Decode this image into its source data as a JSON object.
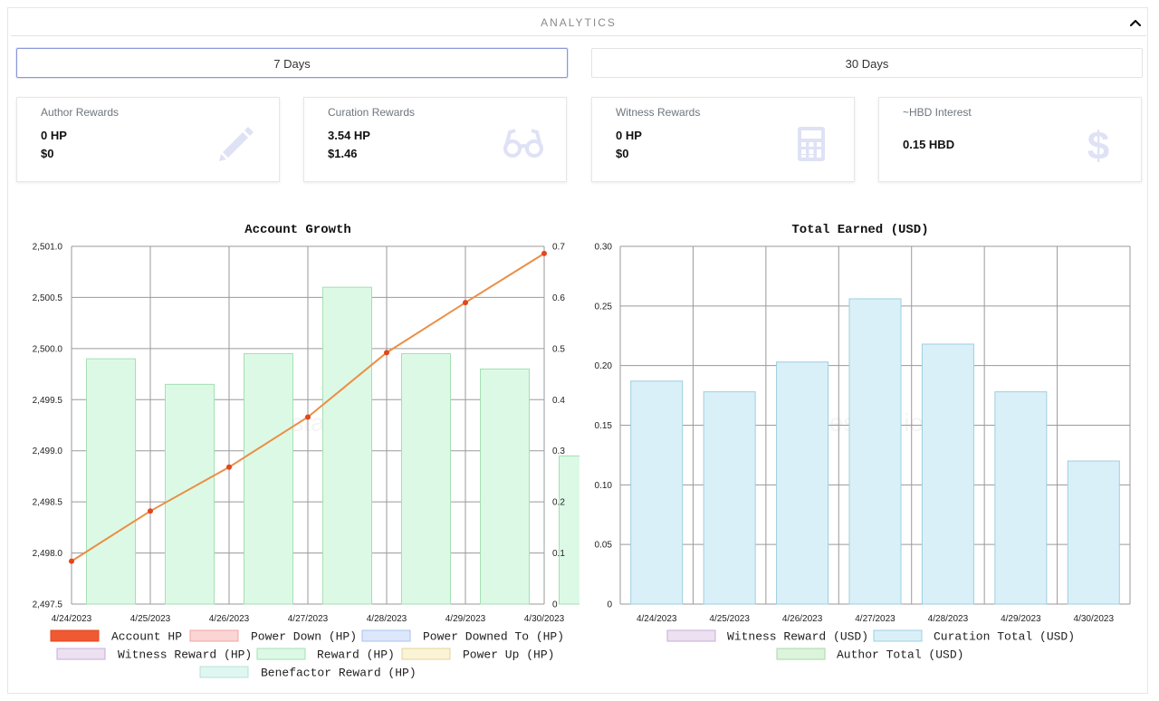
{
  "section": {
    "title": "ANALYTICS"
  },
  "range_buttons": {
    "seven": "7 Days",
    "thirty": "30 Days"
  },
  "cards": [
    {
      "title": "Author Rewards",
      "line1": "0 HP",
      "line2": "$0",
      "icon": "pencil-icon"
    },
    {
      "title": "Curation Rewards",
      "line1": "3.54 HP",
      "line2": "$1.46",
      "icon": "glasses-icon"
    },
    {
      "title": "Witness Rewards",
      "line1": "0 HP",
      "line2": "$0",
      "icon": "calculator-icon"
    },
    {
      "title": "~HBD Interest",
      "line1": "0.15 HBD",
      "icon": "dollar-icon"
    }
  ],
  "colors": {
    "accent": "#8b97d8",
    "icon": "#dfe2f5",
    "green": "#dcf9e6",
    "green_border": "#a5dfb4",
    "blue": "#daf0f8",
    "blue_border": "#9ccfe0",
    "orange": "#eb8e45"
  },
  "chart_data": [
    {
      "type": "bar",
      "title": "Account Growth",
      "categories": [
        "4/24/2023",
        "4/25/2023",
        "4/26/2023",
        "4/27/2023",
        "4/28/2023",
        "4/29/2023",
        "4/30/2023"
      ],
      "left_axis": {
        "range": [
          2497.5,
          2501.0
        ],
        "ticks": [
          "2,501.0",
          "2,500.5",
          "2,500.0",
          "2,499.5",
          "2,499.0",
          "2,498.5",
          "2,498.0",
          "2,497.5"
        ]
      },
      "right_axis": {
        "range": [
          0,
          0.7
        ],
        "ticks": [
          "0.7",
          "0.6",
          "0.5",
          "0.4",
          "0.3",
          "0.2",
          "0.1",
          "0"
        ]
      },
      "series": [
        {
          "name": "Reward (HP)",
          "type": "bar",
          "axis": "right",
          "values": [
            0.48,
            0.43,
            0.49,
            0.62,
            0.49,
            0.46,
            0.29
          ]
        },
        {
          "name": "Account HP",
          "type": "line",
          "axis": "left",
          "values": [
            2497.92,
            2498.41,
            2498.84,
            2499.33,
            2499.96,
            2500.45,
            2500.93
          ]
        }
      ],
      "legend": [
        {
          "name": "Account HP",
          "color": "#f05a32",
          "border": "#e2461c"
        },
        {
          "name": "Power Down (HP)",
          "color": "#fbd4d4",
          "border": "#f2a5a5"
        },
        {
          "name": "Power Downed To (HP)",
          "color": "#dde7fb",
          "border": "#aac0ee"
        },
        {
          "name": "Witness Reward (HP)",
          "color": "#ece0f1",
          "border": "#c6aed5"
        },
        {
          "name": "Reward (HP)",
          "color": "#dcf9e6",
          "border": "#a5dfb4"
        },
        {
          "name": "Power Up (HP)",
          "color": "#faf3d6",
          "border": "#e3d49b"
        },
        {
          "name": "Benefactor Reward (HP)",
          "color": "#e0f6f1",
          "border": "#b4e2d7"
        }
      ]
    },
    {
      "type": "bar",
      "title": "Total Earned (USD)",
      "categories": [
        "4/24/2023",
        "4/25/2023",
        "4/26/2023",
        "4/27/2023",
        "4/28/2023",
        "4/29/2023",
        "4/30/2023"
      ],
      "y_axis": {
        "range": [
          0,
          0.3
        ],
        "ticks": [
          "0.30",
          "0.25",
          "0.20",
          "0.15",
          "0.10",
          "0.05",
          "0"
        ]
      },
      "series": [
        {
          "name": "Curation Total (USD)",
          "type": "bar",
          "values": [
            0.187,
            0.178,
            0.203,
            0.256,
            0.218,
            0.178,
            0.12
          ]
        }
      ],
      "legend": [
        {
          "name": "Witness Reward (USD)",
          "color": "#ece0f1",
          "border": "#c6aed5"
        },
        {
          "name": "Curation Total (USD)",
          "color": "#daf0f8",
          "border": "#9ccfe0"
        },
        {
          "name": "Author Total (USD)",
          "color": "#dcf4dc",
          "border": "#a9d6a9"
        }
      ]
    }
  ]
}
